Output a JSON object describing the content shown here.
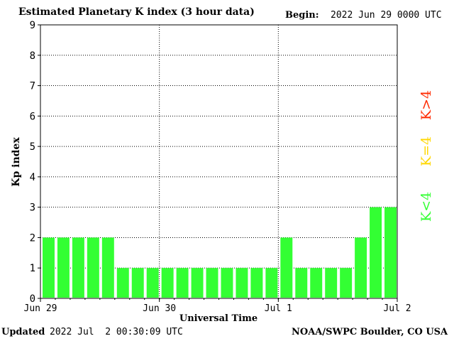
{
  "header": {
    "title": "Estimated Planetary K index (3 hour data)",
    "begin_label": "Begin:",
    "begin_value": "2022 Jun 29 0000 UTC"
  },
  "footer": {
    "updated_label": "Updated",
    "updated_value": "2022 Jul  2 00:30:09 UTC",
    "org": "NOAA/SWPC Boulder, CO USA"
  },
  "legend": {
    "high": {
      "label": "K>4",
      "color": "#ff2a00"
    },
    "mid": {
      "label": "K=4",
      "color": "#ffd700"
    },
    "low": {
      "label": "K<4",
      "color": "#33ff33"
    }
  },
  "chart_data": {
    "type": "bar",
    "title": "Estimated Planetary K index (3 hour data)",
    "xlabel": "Universal Time",
    "ylabel": "Kp index",
    "ylim": [
      0,
      9
    ],
    "y_ticks": [
      "0",
      "1",
      "2",
      "3",
      "4",
      "5",
      "6",
      "7",
      "8",
      "9"
    ],
    "x_tick_labels": [
      "Jun 29",
      "Jun 30",
      "Jul 1",
      "Jul 2"
    ],
    "grid": true,
    "bar_color": "#33ff33",
    "interval_hours": 3,
    "values": [
      2,
      2,
      2,
      2,
      2,
      1,
      1,
      1,
      1,
      1,
      1,
      1,
      1,
      1,
      1,
      1,
      2,
      1,
      1,
      1,
      1,
      2,
      3,
      3
    ]
  }
}
